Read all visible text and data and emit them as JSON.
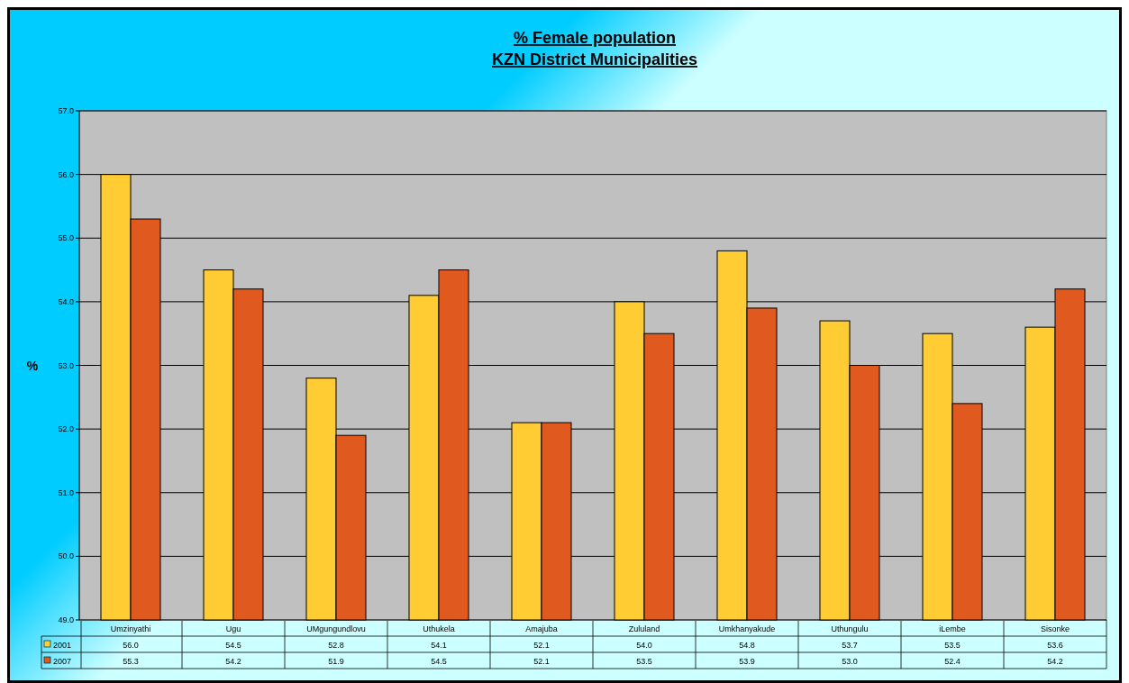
{
  "chart_data": {
    "type": "bar",
    "title": "% Female population\nKZN District Municipalities",
    "ylabel": "%",
    "categories": [
      "Umzinyathi",
      "Ugu",
      "UMgungundlovu",
      "Uthukela",
      "Amajuba",
      "Zululand",
      "Umkhanyakude",
      "Uthungulu",
      "iLembe",
      "Sisonke"
    ],
    "series": [
      {
        "name": "2001",
        "color": "#ffcc33",
        "values": [
          56.0,
          54.5,
          52.8,
          54.1,
          52.1,
          54.0,
          54.8,
          53.7,
          53.5,
          53.6
        ],
        "value_labels": [
          "56.0",
          "54.5",
          "52.8",
          "54.1",
          "52.1",
          "54.0",
          "54.8",
          "53.7",
          "53.5",
          "53.6"
        ]
      },
      {
        "name": "2007",
        "color": "#e05a20",
        "values": [
          55.3,
          54.2,
          51.9,
          54.5,
          52.1,
          53.5,
          53.9,
          53.0,
          52.4,
          54.2
        ],
        "value_labels": [
          "55.3",
          "54.2",
          "51.9",
          "54.5",
          "52.1",
          "53.5",
          "53.9",
          "53.0",
          "52.4",
          "54.2"
        ]
      }
    ],
    "ylim": [
      49,
      57
    ],
    "yticks": [
      {
        "value": 49,
        "label": "49.0"
      },
      {
        "value": 50,
        "label": "50.0"
      },
      {
        "value": 51,
        "label": "51.0"
      },
      {
        "value": 52,
        "label": "52.0"
      },
      {
        "value": 53,
        "label": "53.0"
      },
      {
        "value": 54,
        "label": "54.0"
      },
      {
        "value": 55,
        "label": "55.0"
      },
      {
        "value": 56,
        "label": "56.0"
      },
      {
        "value": 57,
        "label": "57.0"
      }
    ],
    "grid": "y",
    "legend": "bottom left"
  }
}
